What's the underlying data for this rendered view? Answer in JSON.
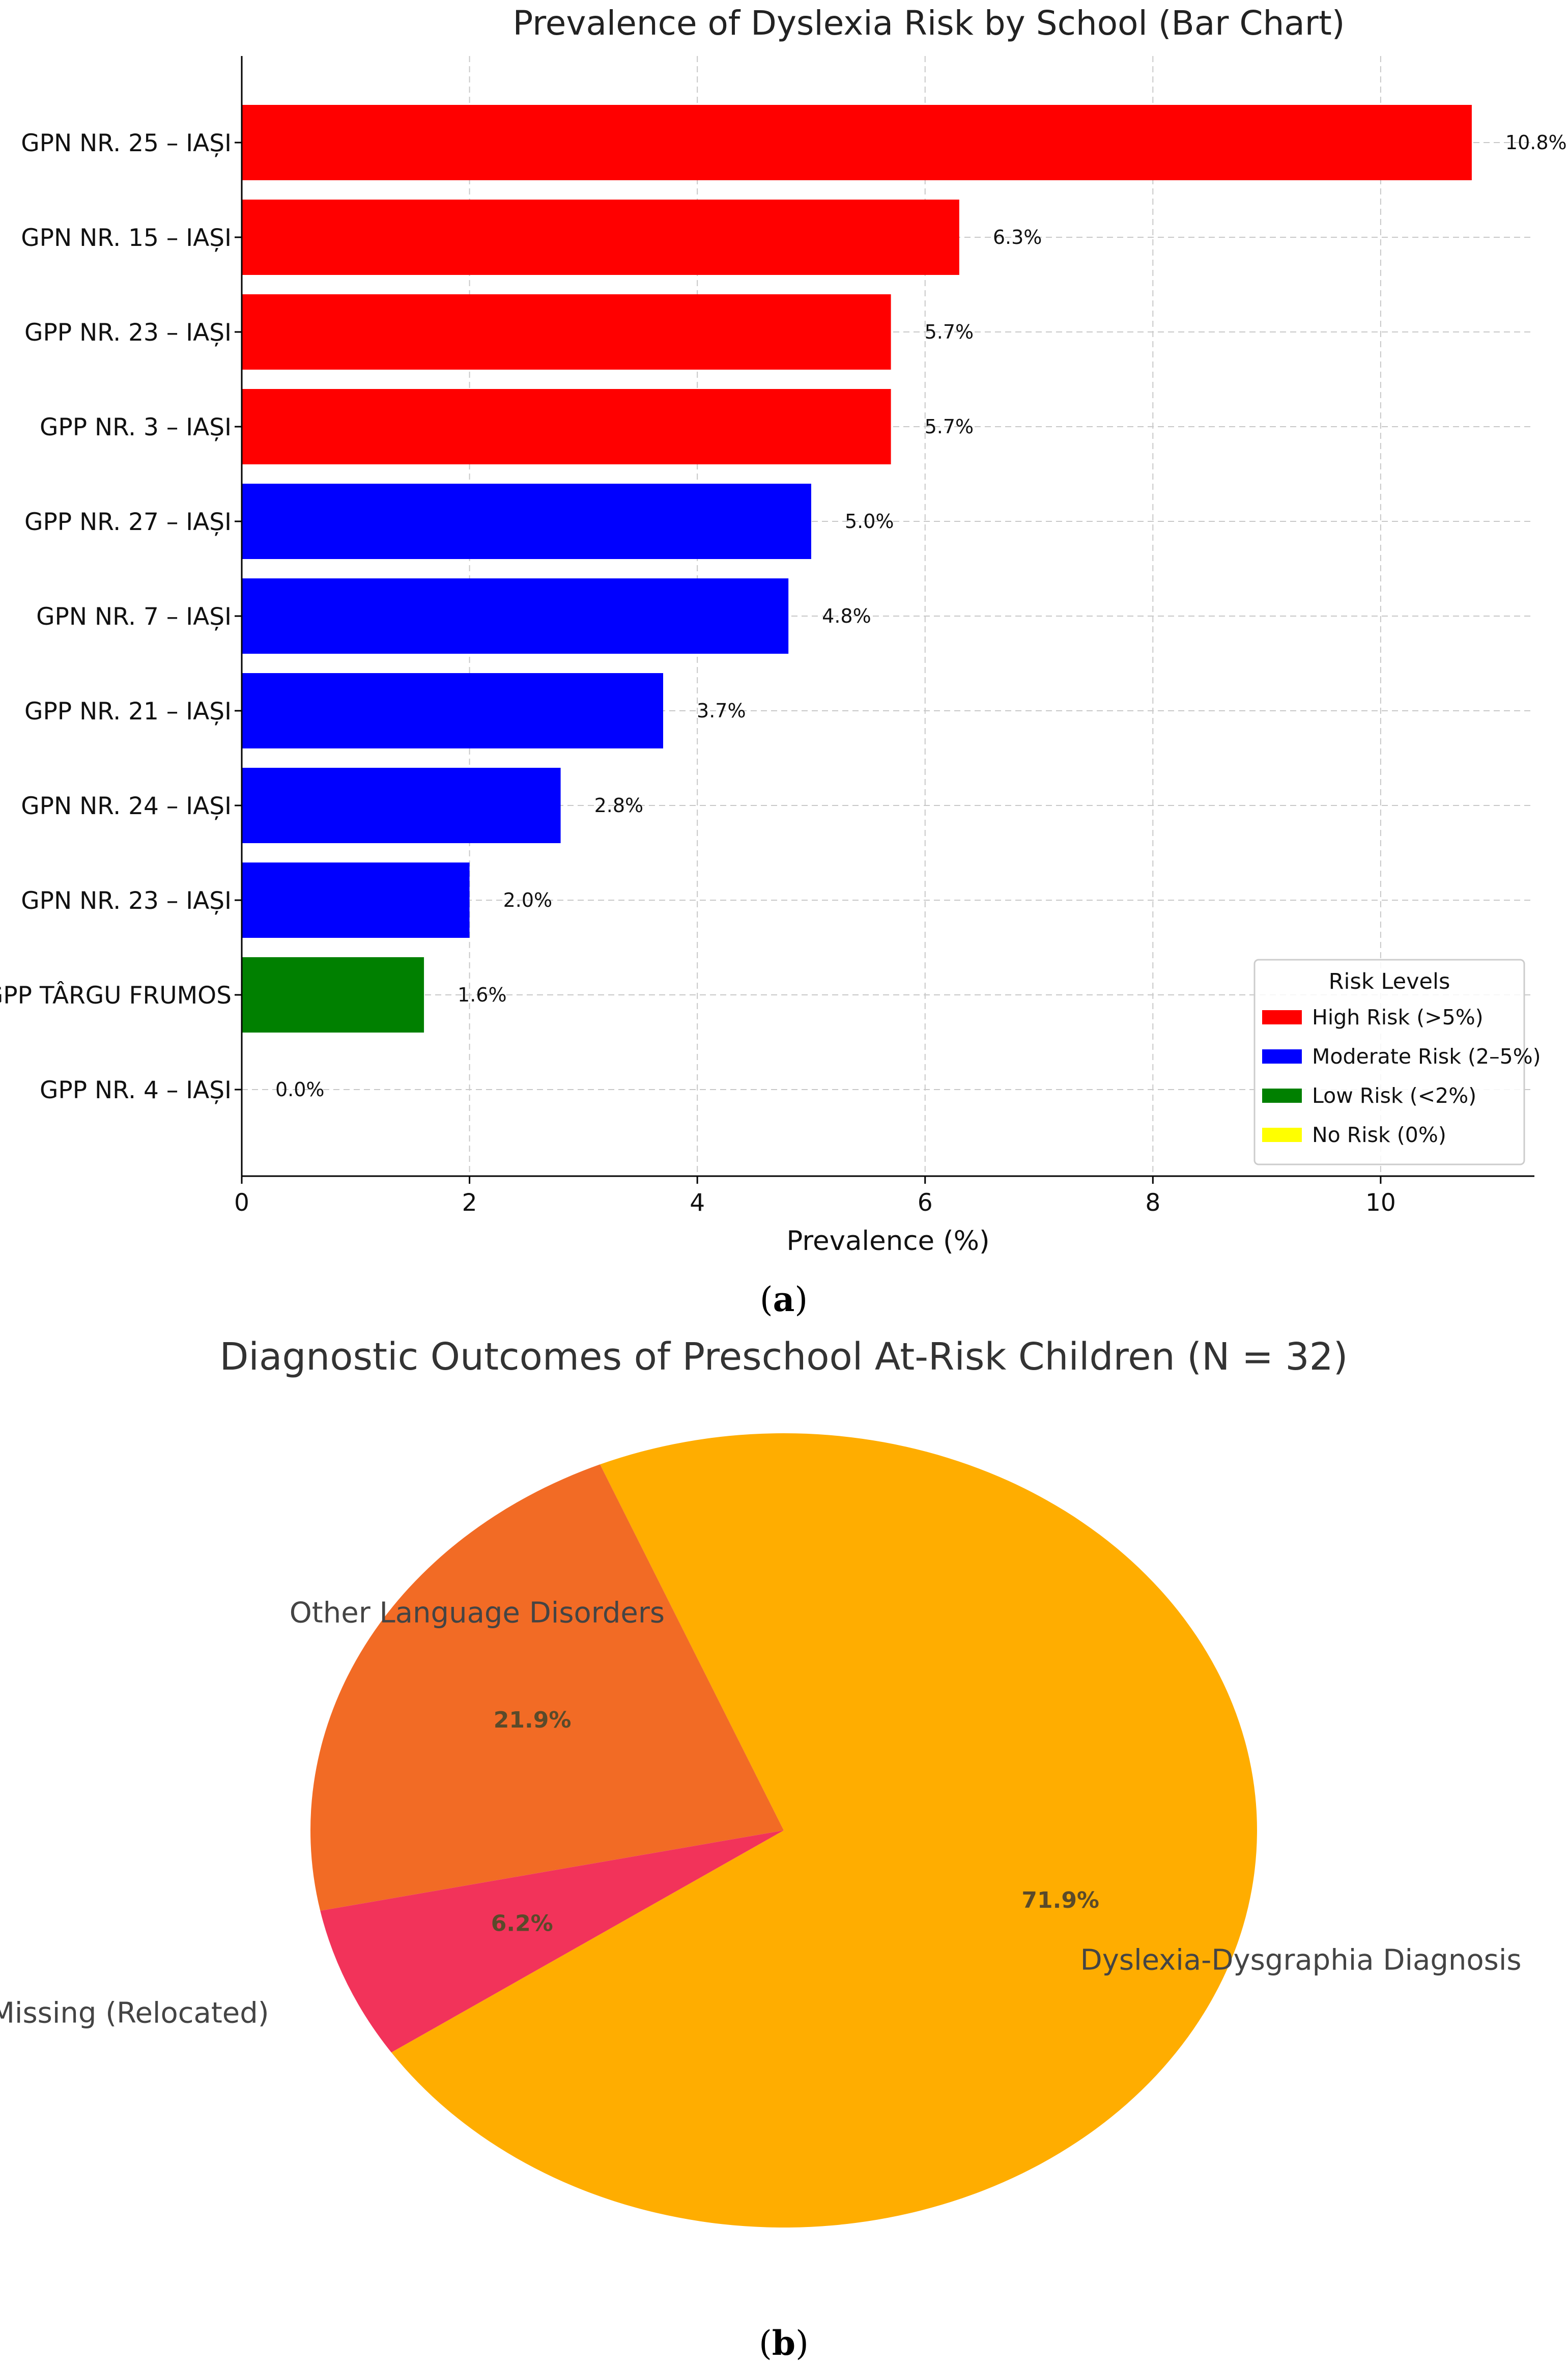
{
  "chart_data": [
    {
      "type": "bar",
      "orientation": "horizontal",
      "title": "Prevalence of Dyslexia Risk by School (Bar Chart)",
      "xlabel": "Prevalence (%)",
      "ylabel": "",
      "xlim": [
        0,
        11.35
      ],
      "xticks": [
        0,
        2,
        4,
        6,
        8,
        10
      ],
      "grid": true,
      "categories": [
        "GPN NR. 25 – IAȘI",
        "GPN NR. 15 – IAȘI",
        "GPP NR. 23 – IAȘI",
        "GPP NR. 3 – IAȘI",
        "GPP NR. 27 – IAȘI",
        "GPN NR. 7 – IAȘI",
        "GPP NR. 21 – IAȘI",
        "GPN NR. 24 – IAȘI",
        "GPN NR. 23 – IAȘI",
        "GPP TÂRGU FRUMOS",
        "GPP NR. 4 – IAȘI"
      ],
      "values": [
        10.8,
        6.3,
        5.7,
        5.7,
        5.0,
        4.8,
        3.7,
        2.8,
        2.0,
        1.6,
        0.0
      ],
      "value_labels": [
        "10.8%",
        "6.3%",
        "5.7%",
        "5.7%",
        "5.0%",
        "4.8%",
        "3.7%",
        "2.8%",
        "2.0%",
        "1.6%",
        "0.0%"
      ],
      "bar_levels": [
        "high",
        "high",
        "high",
        "high",
        "moderate",
        "moderate",
        "moderate",
        "moderate",
        "moderate",
        "low",
        "none"
      ],
      "legend": {
        "title": "Risk Levels",
        "placement": "lower-right",
        "items": [
          {
            "key": "high",
            "label": "High Risk (>5%)",
            "color": "#ff0000"
          },
          {
            "key": "moderate",
            "label": "Moderate Risk (2–5%)",
            "color": "#0000ff"
          },
          {
            "key": "low",
            "label": "Low Risk (<2%)",
            "color": "#008000"
          },
          {
            "key": "none",
            "label": "No Risk (0%)",
            "color": "#ffff00"
          }
        ]
      },
      "caption": "(a)",
      "caption_letter": "a"
    },
    {
      "type": "pie",
      "title": "Diagnostic Outcomes of Preschool At-Risk Children (N = 32)",
      "slices": [
        {
          "label": "Dyslexia-Dysgraphia Diagnosis",
          "value": 71.9,
          "pct_label": "71.9%",
          "color": "#ffad00"
        },
        {
          "label": "Other Language Disorders",
          "value": 21.9,
          "pct_label": "21.9%",
          "color": "#f26b25"
        },
        {
          "label": "Missing (Relocated)",
          "value": 6.2,
          "pct_label": "6.2%",
          "color": "#f2335a"
        }
      ],
      "start_angle_deg": 214,
      "direction": "counterclockwise",
      "caption": "(b)",
      "caption_letter": "b"
    }
  ]
}
